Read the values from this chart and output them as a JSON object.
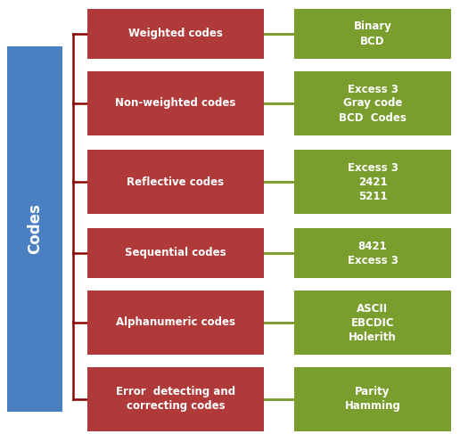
{
  "codes_label": "Codes",
  "codes_box_color": "#4A7FC1",
  "red_box_color": "#B03A3A",
  "green_box_color": "#7A9E2E",
  "white": "#FFFFFF",
  "connector_color": "#8B0000",
  "green_connector_color": "#7A9E2E",
  "categories": [
    {
      "label": "Weighted codes",
      "items": [
        "Binary",
        "BCD"
      ],
      "n_lines": 1
    },
    {
      "label": "Non-weighted codes",
      "items": [
        "Excess 3",
        "Gray code",
        "BCD  Codes"
      ],
      "n_lines": 1
    },
    {
      "label": "Reflective codes",
      "items": [
        "Excess 3",
        "2421",
        "5211"
      ],
      "n_lines": 1
    },
    {
      "label": "Sequential codes",
      "items": [
        "8421",
        "Excess 3"
      ],
      "n_lines": 1
    },
    {
      "label": "Alphanumeric codes",
      "items": [
        "ASCII",
        "EBCDIC",
        "Holerith"
      ],
      "n_lines": 1
    },
    {
      "label": "Error  detecting and\ncorrecting codes",
      "items": [
        "Parity",
        "Hamming"
      ],
      "n_lines": 2
    }
  ],
  "fig_width": 5.16,
  "fig_height": 4.87,
  "dpi": 100,
  "bg_color": "#FFFFFF"
}
